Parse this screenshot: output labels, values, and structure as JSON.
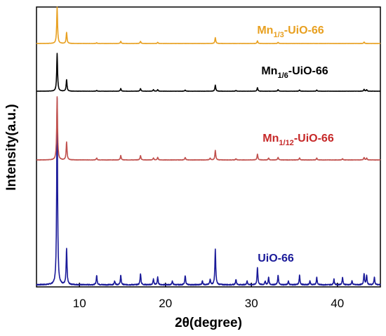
{
  "chart_data": {
    "type": "line",
    "title": "",
    "xlabel": "2θ(degree)",
    "ylabel": "Intensity(a.u.)",
    "xlim": [
      5,
      45
    ],
    "xticks": [
      10,
      20,
      30,
      40
    ],
    "tick_labels": [
      "10",
      "20",
      "30",
      "40"
    ],
    "grid": false,
    "legend": "none",
    "y_ticks_shown": false,
    "series": [
      {
        "name": "UiO-66",
        "label": {
          "base": "UiO-66",
          "sub": "",
          "suffix": ""
        },
        "color": "#1a1a99",
        "label_color": "#1a1a99",
        "peaks": [
          [
            7.4,
            100
          ],
          [
            8.5,
            19
          ],
          [
            12.0,
            5
          ],
          [
            14.1,
            2
          ],
          [
            14.8,
            5
          ],
          [
            17.1,
            6
          ],
          [
            18.6,
            3
          ],
          [
            19.1,
            4
          ],
          [
            20.8,
            2
          ],
          [
            22.3,
            5
          ],
          [
            24.3,
            2
          ],
          [
            25.2,
            3
          ],
          [
            25.8,
            19
          ],
          [
            28.2,
            3
          ],
          [
            29.5,
            2
          ],
          [
            30.7,
            9
          ],
          [
            31.6,
            2
          ],
          [
            32.0,
            4
          ],
          [
            33.1,
            5
          ],
          [
            34.3,
            2
          ],
          [
            35.6,
            5
          ],
          [
            36.8,
            2
          ],
          [
            37.6,
            4
          ],
          [
            39.6,
            3
          ],
          [
            40.6,
            4
          ],
          [
            41.7,
            2
          ],
          [
            43.1,
            6
          ],
          [
            43.4,
            5
          ],
          [
            44.3,
            4
          ]
        ]
      },
      {
        "name": "Mn1/12-UiO-66",
        "label": {
          "base": "Mn",
          "sub": "1/12",
          "suffix": "-UiO-66"
        },
        "color": "#c0504d",
        "label_color": "#c62828",
        "peaks": [
          [
            7.4,
            100
          ],
          [
            8.5,
            28
          ],
          [
            12.0,
            3
          ],
          [
            14.8,
            7
          ],
          [
            17.1,
            7
          ],
          [
            18.6,
            3
          ],
          [
            19.1,
            4
          ],
          [
            22.3,
            4
          ],
          [
            25.2,
            3
          ],
          [
            25.8,
            15
          ],
          [
            28.2,
            2
          ],
          [
            30.7,
            9
          ],
          [
            32.0,
            3
          ],
          [
            33.1,
            4
          ],
          [
            35.6,
            3
          ],
          [
            37.6,
            3
          ],
          [
            40.6,
            2
          ],
          [
            43.1,
            4
          ],
          [
            43.4,
            3
          ]
        ]
      },
      {
        "name": "Mn1/6-UiO-66",
        "label": {
          "base": "Mn",
          "sub": "1/6",
          "suffix": "-UiO-66"
        },
        "color": "#000000",
        "label_color": "#000000",
        "peaks": [
          [
            7.4,
            100
          ],
          [
            8.5,
            30
          ],
          [
            12.0,
            2
          ],
          [
            14.8,
            7
          ],
          [
            17.1,
            7
          ],
          [
            18.6,
            4
          ],
          [
            19.1,
            4
          ],
          [
            22.3,
            3
          ],
          [
            25.8,
            16
          ],
          [
            28.2,
            2
          ],
          [
            30.7,
            9
          ],
          [
            33.1,
            4
          ],
          [
            35.6,
            3
          ],
          [
            37.6,
            3
          ],
          [
            43.1,
            5
          ],
          [
            43.4,
            4
          ]
        ]
      },
      {
        "name": "Mn1/3-UiO-66",
        "label": {
          "base": "Mn",
          "sub": "1/3",
          "suffix": "-UiO-66"
        },
        "color": "#e8a020",
        "label_color": "#e8a020",
        "peaks": [
          [
            7.4,
            100
          ],
          [
            8.5,
            30
          ],
          [
            12.0,
            2
          ],
          [
            14.8,
            6
          ],
          [
            17.1,
            6
          ],
          [
            19.1,
            3
          ],
          [
            25.8,
            16
          ],
          [
            30.7,
            7
          ],
          [
            33.1,
            3
          ],
          [
            43.1,
            4
          ]
        ]
      }
    ]
  }
}
